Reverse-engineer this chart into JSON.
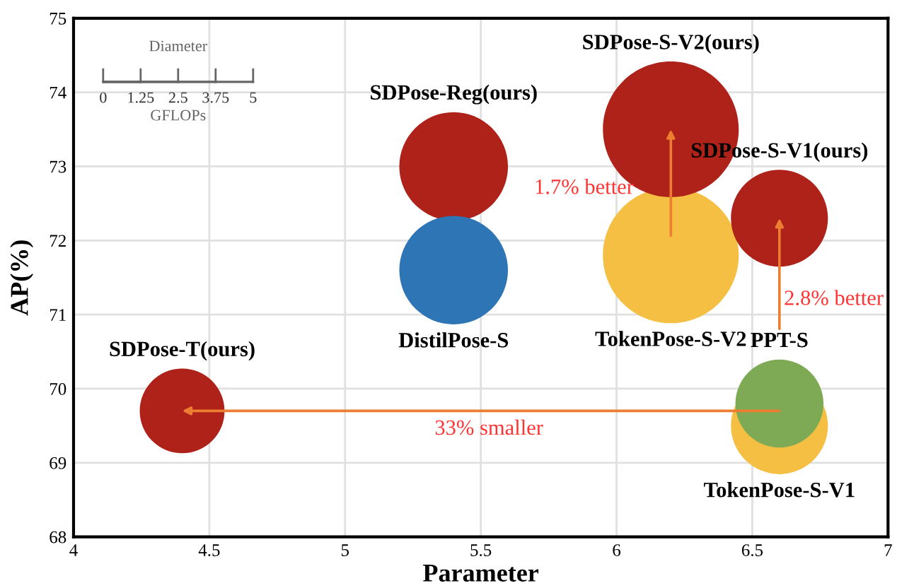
{
  "chart_data": {
    "type": "bubble",
    "xlabel": "Parameter",
    "ylabel": "AP(%)",
    "xlim": [
      4,
      7
    ],
    "xticks": [
      4,
      4.5,
      5,
      5.5,
      6,
      6.5,
      7
    ],
    "ylim": [
      68,
      75
    ],
    "yticks": [
      68,
      69,
      70,
      71,
      72,
      73,
      74,
      75
    ],
    "grid": true,
    "legend": false,
    "series": [
      {
        "name": "SDPose-T(ours)",
        "color": "#ae2219",
        "x": [
          4.4
        ],
        "values": [
          69.7
        ],
        "sizes": [
          0.39
        ]
      },
      {
        "name": "SDPose-Reg(ours)",
        "color": "#ae2219",
        "x": [
          5.4
        ],
        "values": [
          73.0
        ],
        "sizes": [
          0.64
        ]
      },
      {
        "name": "DistilPose-S",
        "color": "#2e75b6",
        "x": [
          5.4
        ],
        "values": [
          71.6
        ],
        "sizes": [
          0.64
        ]
      },
      {
        "name": "TokenPose-S-V2",
        "color": "#f4bf42",
        "x": [
          6.2
        ],
        "values": [
          71.8
        ],
        "sizes": [
          1
        ]
      },
      {
        "name": "SDPose-S-V2(ours)",
        "color": "#ae2219",
        "x": [
          6.2
        ],
        "values": [
          73.5
        ],
        "sizes": [
          1
        ]
      },
      {
        "name": "TokenPose-S-V1",
        "color": "#f4bf42",
        "x": [
          6.6
        ],
        "values": [
          69.5
        ],
        "sizes": [
          0.51
        ]
      },
      {
        "name": "PPT-S",
        "color": "#7ea955",
        "x": [
          6.6
        ],
        "values": [
          69.8
        ],
        "sizes": [
          0.42
        ]
      },
      {
        "name": "SDPose-S-V1(ours)",
        "color": "#ae2219",
        "x": [
          6.6
        ],
        "values": [
          72.3
        ],
        "sizes": [
          0.51
        ]
      }
    ],
    "annotations": [
      {
        "text": "1.7% better",
        "x": 6.2,
        "y": 73.5
      },
      {
        "text": "2.8% better",
        "x": 6.6,
        "y": 72.3
      },
      "33% smaller",
      "Diameter",
      "0",
      "1.25",
      "2.5",
      "3.75",
      "5",
      "GFLOPs"
    ]
  }
}
